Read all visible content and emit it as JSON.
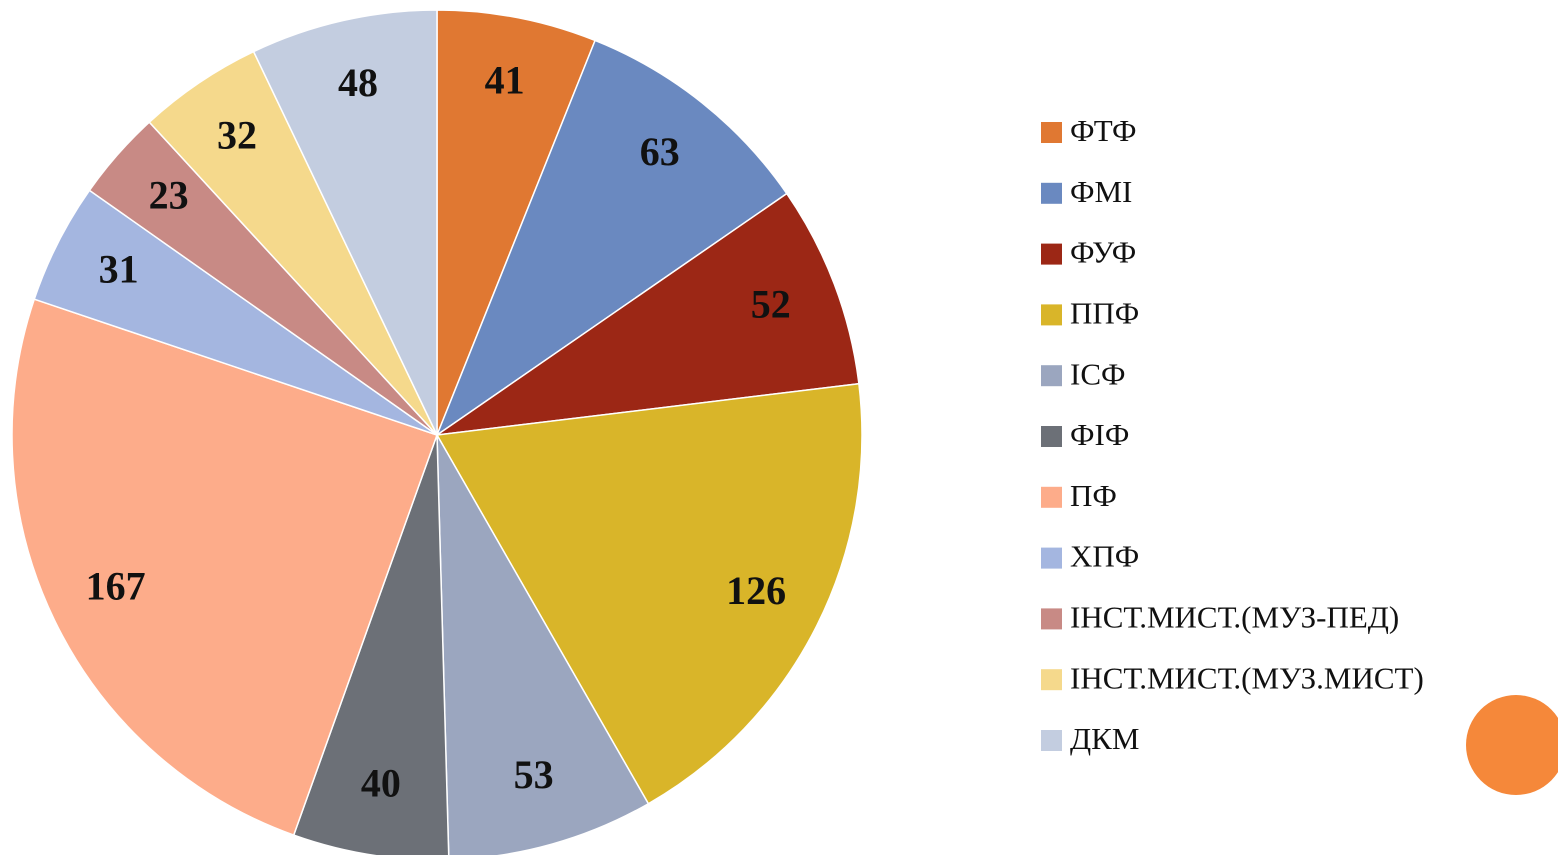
{
  "chart_data": {
    "type": "pie",
    "categories": [
      "ФТФ",
      "ФМІ",
      "ФУФ",
      "ППФ",
      "ІСФ",
      "ФІФ",
      "ПФ",
      "ХПФ",
      "ІНСТ.МИСТ.(МУЗ-ПЕД)",
      "ІНСТ.МИСТ.(МУЗ.МИСТ)",
      "ДКМ"
    ],
    "values": [
      41,
      63,
      52,
      126,
      53,
      40,
      167,
      31,
      23,
      32,
      48
    ],
    "colors": [
      "#e07832",
      "#6a89c0",
      "#9c2715",
      "#d9b529",
      "#9ba6bf",
      "#6c7077",
      "#fdac8a",
      "#a4b6e0",
      "#c88a85",
      "#f5d98c",
      "#c3cde0"
    ],
    "legend": "right"
  }
}
